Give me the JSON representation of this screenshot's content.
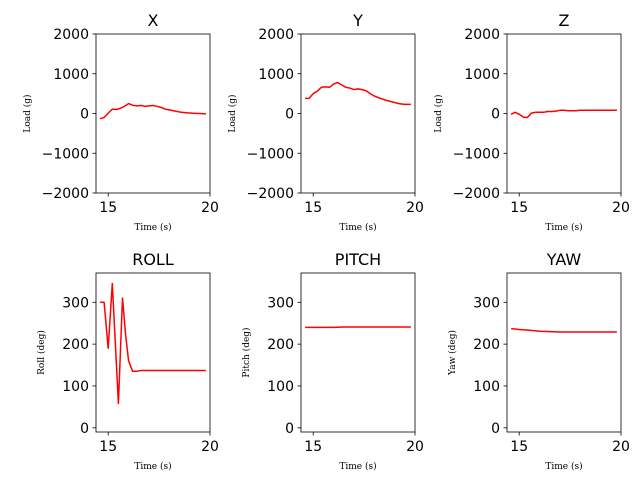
{
  "chart_data": [
    {
      "type": "line",
      "title": "X",
      "xlabel": "Time (s)",
      "ylabel": "Load (g)",
      "xlim": [
        14.4,
        20
      ],
      "ylim": [
        -2000,
        2000
      ],
      "xticks": [
        15,
        20
      ],
      "xtick_labels": [
        "15",
        "20"
      ],
      "yticks": [
        -2000,
        -1000,
        0,
        1000,
        2000
      ],
      "ytick_labels": [
        "−2000",
        "−1000",
        "0",
        "1000",
        "2000"
      ],
      "series": [
        {
          "color": "#ff0000",
          "x": [
            14.6,
            14.8,
            15.0,
            15.2,
            15.4,
            15.6,
            15.8,
            16.0,
            16.2,
            16.4,
            16.6,
            16.8,
            17.0,
            17.2,
            17.4,
            17.6,
            17.8,
            18.0,
            18.3,
            18.6,
            18.9,
            19.2,
            19.5,
            19.8
          ],
          "y": [
            -130,
            -100,
            10,
            110,
            100,
            130,
            180,
            250,
            210,
            190,
            200,
            180,
            190,
            200,
            180,
            150,
            110,
            90,
            60,
            30,
            15,
            5,
            0,
            -10
          ]
        }
      ]
    },
    {
      "type": "line",
      "title": "Y",
      "xlabel": "Time (s)",
      "ylabel": "Load (g)",
      "xlim": [
        14.4,
        20
      ],
      "ylim": [
        -2000,
        2000
      ],
      "xticks": [
        15,
        20
      ],
      "xtick_labels": [
        "15",
        "20"
      ],
      "yticks": [
        -2000,
        -1000,
        0,
        1000,
        2000
      ],
      "ytick_labels": [
        "−2000",
        "−1000",
        "0",
        "1000",
        "2000"
      ],
      "series": [
        {
          "color": "#ff0000",
          "x": [
            14.6,
            14.8,
            15.0,
            15.2,
            15.4,
            15.6,
            15.8,
            16.0,
            16.2,
            16.4,
            16.6,
            16.8,
            17.0,
            17.2,
            17.4,
            17.6,
            17.8,
            18.0,
            18.3,
            18.6,
            18.9,
            19.2,
            19.5,
            19.8
          ],
          "y": [
            380,
            380,
            500,
            560,
            660,
            670,
            660,
            740,
            780,
            720,
            660,
            640,
            600,
            620,
            600,
            570,
            500,
            440,
            380,
            330,
            290,
            250,
            230,
            230
          ]
        }
      ]
    },
    {
      "type": "line",
      "title": "Z",
      "xlabel": "Time (s)",
      "ylabel": "Load (g)",
      "xlim": [
        14.4,
        20
      ],
      "ylim": [
        -2000,
        2000
      ],
      "xticks": [
        15,
        20
      ],
      "xtick_labels": [
        "15",
        "20"
      ],
      "yticks": [
        -2000,
        -1000,
        0,
        1000,
        2000
      ],
      "ytick_labels": [
        "−2000",
        "−1000",
        "0",
        "1000",
        "2000"
      ],
      "series": [
        {
          "color": "#ff0000",
          "x": [
            14.6,
            14.8,
            15.0,
            15.2,
            15.4,
            15.6,
            15.8,
            16.0,
            16.2,
            16.4,
            16.6,
            16.8,
            17.0,
            17.2,
            17.4,
            17.6,
            17.8,
            18.0,
            18.3,
            18.6,
            18.9,
            19.2,
            19.5,
            19.8
          ],
          "y": [
            -20,
            30,
            -20,
            -90,
            -100,
            10,
            30,
            30,
            30,
            50,
            50,
            60,
            80,
            80,
            70,
            70,
            70,
            80,
            80,
            80,
            80,
            80,
            80,
            80
          ]
        }
      ]
    },
    {
      "type": "line",
      "title": "ROLL",
      "xlabel": "Time (s)",
      "ylabel": "Roll (deg)",
      "xlim": [
        14.4,
        20
      ],
      "ylim": [
        -10,
        370
      ],
      "xticks": [
        15,
        20
      ],
      "xtick_labels": [
        "15",
        "20"
      ],
      "yticks": [
        0,
        100,
        200,
        300
      ],
      "ytick_labels": [
        "0",
        "100",
        "200",
        "300"
      ],
      "series": [
        {
          "color": "#ff0000",
          "x": [
            14.6,
            14.8,
            15.0,
            15.2,
            15.5,
            15.7,
            15.85,
            16.0,
            16.2,
            16.4,
            16.6,
            17.0,
            17.5,
            18.0,
            18.5,
            19.0,
            19.5,
            19.8
          ],
          "y": [
            300,
            300,
            190,
            345,
            58,
            310,
            225,
            160,
            135,
            135,
            137,
            137,
            137,
            137,
            137,
            137,
            137,
            137
          ]
        }
      ]
    },
    {
      "type": "line",
      "title": "PITCH",
      "xlabel": "Time (s)",
      "ylabel": "Pitch (deg)",
      "xlim": [
        14.4,
        20
      ],
      "ylim": [
        -10,
        370
      ],
      "xticks": [
        15,
        20
      ],
      "xtick_labels": [
        "15",
        "20"
      ],
      "yticks": [
        0,
        100,
        200,
        300
      ],
      "ytick_labels": [
        "0",
        "100",
        "200",
        "300"
      ],
      "series": [
        {
          "color": "#ff0000",
          "x": [
            14.6,
            15.5,
            16.0,
            16.5,
            17.5,
            18.5,
            19.8
          ],
          "y": [
            240,
            240,
            240,
            241,
            241,
            241,
            241
          ]
        }
      ]
    },
    {
      "type": "line",
      "title": "YAW",
      "xlabel": "Time (s)",
      "ylabel": "Yaw (deg)",
      "xlim": [
        14.4,
        20
      ],
      "ylim": [
        -10,
        370
      ],
      "xticks": [
        15,
        20
      ],
      "xtick_labels": [
        "15",
        "20"
      ],
      "yticks": [
        0,
        100,
        200,
        300
      ],
      "ytick_labels": [
        "0",
        "100",
        "200",
        "300"
      ],
      "series": [
        {
          "color": "#ff0000",
          "x": [
            14.6,
            15.0,
            15.5,
            16.0,
            16.5,
            17.0,
            17.5,
            18.0,
            18.5,
            19.0,
            19.5,
            19.8
          ],
          "y": [
            237,
            235,
            233,
            231,
            230,
            229,
            229,
            229,
            229,
            229,
            229,
            229
          ]
        }
      ]
    }
  ]
}
